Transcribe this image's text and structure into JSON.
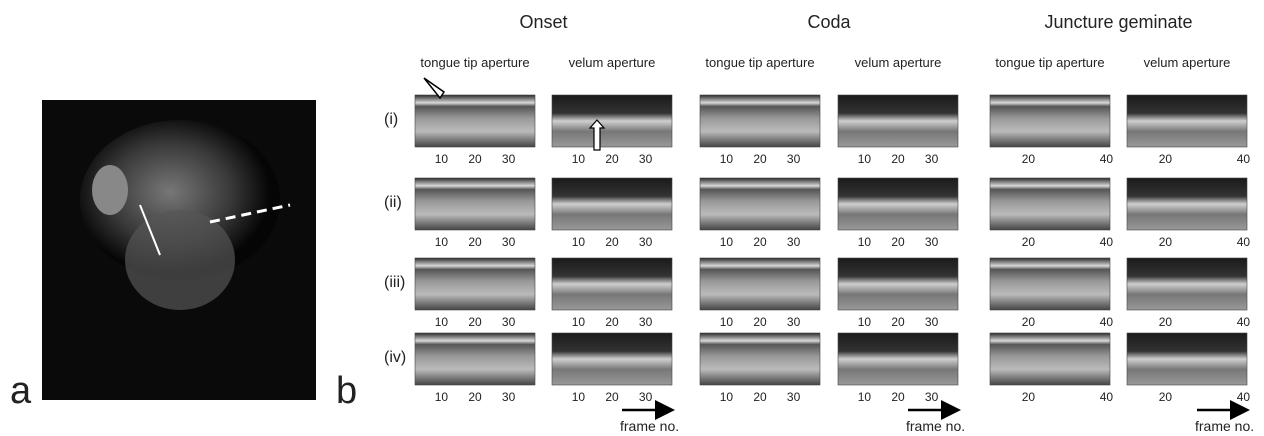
{
  "panel_labels": [
    "a",
    "b"
  ],
  "columns": [
    {
      "title": "Onset",
      "subcolumns": [
        {
          "label": "tongue tip aperture",
          "ticks": [
            10,
            20,
            30
          ]
        },
        {
          "label": "velum aperture",
          "ticks": [
            10,
            20,
            30
          ]
        }
      ]
    },
    {
      "title": "Coda",
      "subcolumns": [
        {
          "label": "tongue tip aperture",
          "ticks": [
            10,
            20,
            30
          ]
        },
        {
          "label": "velum aperture",
          "ticks": [
            10,
            20,
            30
          ]
        }
      ]
    },
    {
      "title": "Juncture geminate",
      "subcolumns": [
        {
          "label": "tongue tip aperture",
          "ticks": [
            20,
            40
          ]
        },
        {
          "label": "velum aperture",
          "ticks": [
            20,
            40
          ]
        }
      ]
    }
  ],
  "rows": [
    "(i)",
    "(ii)",
    "(iii)",
    "(iv)"
  ],
  "axis_label": "frame no."
}
